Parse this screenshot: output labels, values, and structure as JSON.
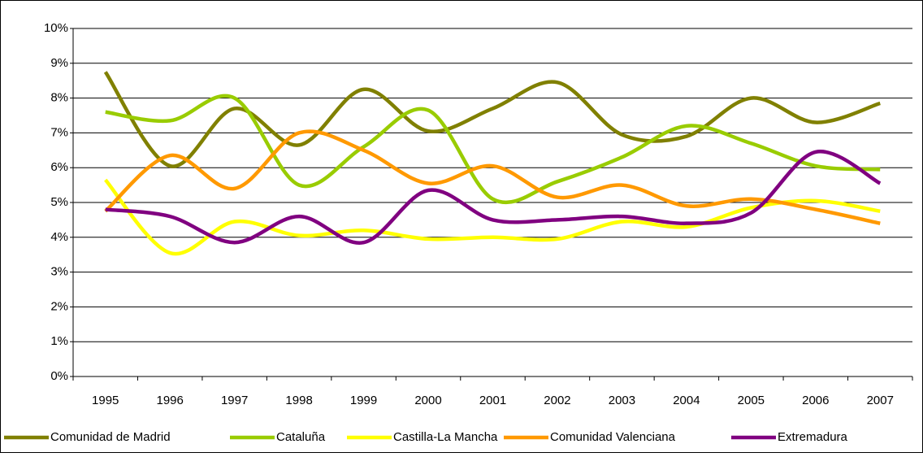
{
  "chart_data": {
    "type": "line",
    "categories": [
      "1995",
      "1996",
      "1997",
      "1998",
      "1999",
      "2000",
      "2001",
      "2002",
      "2003",
      "2004",
      "2005",
      "2006",
      "2007"
    ],
    "series": [
      {
        "name": "Comunidad de Madrid",
        "color": "#808000",
        "values": [
          8.75,
          6.05,
          7.7,
          6.65,
          8.25,
          7.05,
          7.7,
          8.45,
          6.95,
          6.9,
          8.0,
          7.3,
          7.85
        ]
      },
      {
        "name": "Cataluña",
        "color": "#99cc00",
        "values": [
          7.6,
          7.35,
          8.0,
          5.5,
          6.6,
          7.65,
          5.1,
          5.6,
          6.3,
          7.2,
          6.7,
          6.05,
          5.95
        ]
      },
      {
        "name": "Castilla-La Mancha",
        "color": "#ffff00",
        "values": [
          5.65,
          3.55,
          4.45,
          4.05,
          4.2,
          3.95,
          4.0,
          3.95,
          4.45,
          4.3,
          4.85,
          5.05,
          4.75
        ]
      },
      {
        "name": "Comunidad Valenciana",
        "color": "#ff9900",
        "values": [
          4.75,
          6.35,
          5.4,
          7.0,
          6.5,
          5.55,
          6.05,
          5.15,
          5.5,
          4.9,
          5.1,
          4.8,
          4.4
        ]
      },
      {
        "name": "Extremadura",
        "color": "#800080",
        "values": [
          4.8,
          4.6,
          3.85,
          4.6,
          3.85,
          5.35,
          4.5,
          4.5,
          4.6,
          4.4,
          4.7,
          6.45,
          5.55
        ]
      }
    ],
    "ylim": [
      0,
      10
    ],
    "yticks": [
      {
        "value": 0,
        "label": "0%"
      },
      {
        "value": 1,
        "label": "1%"
      },
      {
        "value": 2,
        "label": "2%"
      },
      {
        "value": 3,
        "label": "3%"
      },
      {
        "value": 4,
        "label": "4%"
      },
      {
        "value": 5,
        "label": "5%"
      },
      {
        "value": 6,
        "label": "6%"
      },
      {
        "value": 7,
        "label": "7%"
      },
      {
        "value": 8,
        "label": "8%"
      },
      {
        "value": 9,
        "label": "9%"
      },
      {
        "value": 10,
        "label": "10%"
      }
    ],
    "grid": true,
    "legend": "bottom",
    "smooth": true
  }
}
